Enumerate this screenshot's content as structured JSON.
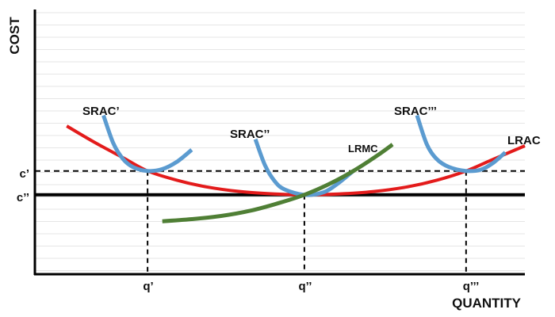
{
  "chart_data": {
    "type": "line",
    "xlabel": "QUANTITY",
    "ylabel": "COST",
    "xlim": [
      0,
      10
    ],
    "ylim": [
      0,
      10
    ],
    "grid": true,
    "x_ticks": [
      {
        "label": "q’",
        "value": 2.3
      },
      {
        "label": "q’’",
        "value": 5.5
      },
      {
        "label": "q’’’",
        "value": 8.8
      }
    ],
    "y_ticks": [
      {
        "label": "c’",
        "value": 3.9
      },
      {
        "label": "c’’",
        "value": 3.0
      }
    ],
    "series": [
      {
        "name": "LRAC",
        "color": "#e31b1b",
        "x": [
          0.65,
          1.2,
          1.8,
          2.3,
          2.9,
          3.5,
          4.2,
          4.9,
          5.5,
          6.2,
          6.9,
          7.6,
          8.2,
          8.8,
          9.3,
          10.0
        ],
        "y": [
          5.6,
          5.0,
          4.4,
          3.9,
          3.55,
          3.3,
          3.12,
          3.03,
          3.0,
          3.03,
          3.12,
          3.3,
          3.55,
          3.9,
          4.3,
          4.85
        ]
      },
      {
        "name": "LRMC",
        "color": "#4f7f35",
        "x": [
          2.6,
          3.2,
          3.8,
          4.4,
          5.0,
          5.5,
          6.0,
          6.5,
          7.0,
          7.3
        ],
        "y": [
          2.0,
          2.08,
          2.2,
          2.4,
          2.7,
          3.0,
          3.4,
          3.9,
          4.5,
          4.9
        ]
      },
      {
        "name": "SRAC’",
        "color": "#5b9bd0",
        "x": [
          1.4,
          1.6,
          1.8,
          2.0,
          2.3,
          2.6,
          2.9,
          3.2
        ],
        "y": [
          6.0,
          4.95,
          4.35,
          4.05,
          3.9,
          3.97,
          4.25,
          4.7
        ]
      },
      {
        "name": "SRAC’’",
        "color": "#5b9bd0",
        "x": [
          4.5,
          4.7,
          4.9,
          5.1,
          5.5,
          5.9,
          6.2,
          6.5
        ],
        "y": [
          5.1,
          4.1,
          3.5,
          3.2,
          3.0,
          3.1,
          3.45,
          3.9
        ]
      },
      {
        "name": "SRAC’’’",
        "color": "#5b9bd0",
        "x": [
          7.8,
          8.0,
          8.2,
          8.45,
          8.8,
          9.1,
          9.35,
          9.6
        ],
        "y": [
          6.0,
          4.9,
          4.35,
          4.05,
          3.9,
          3.95,
          4.2,
          4.6
        ]
      }
    ],
    "reference_lines": [
      {
        "type": "horizontal",
        "value": 3.0,
        "style": "solid",
        "label": "c’’"
      },
      {
        "type": "horizontal",
        "value": 3.9,
        "style": "dashed",
        "label": "c’"
      }
    ],
    "drop_lines": [
      {
        "x": 2.3,
        "y": 3.9
      },
      {
        "x": 5.5,
        "y": 3.0
      },
      {
        "x": 8.8,
        "y": 3.9
      }
    ]
  }
}
